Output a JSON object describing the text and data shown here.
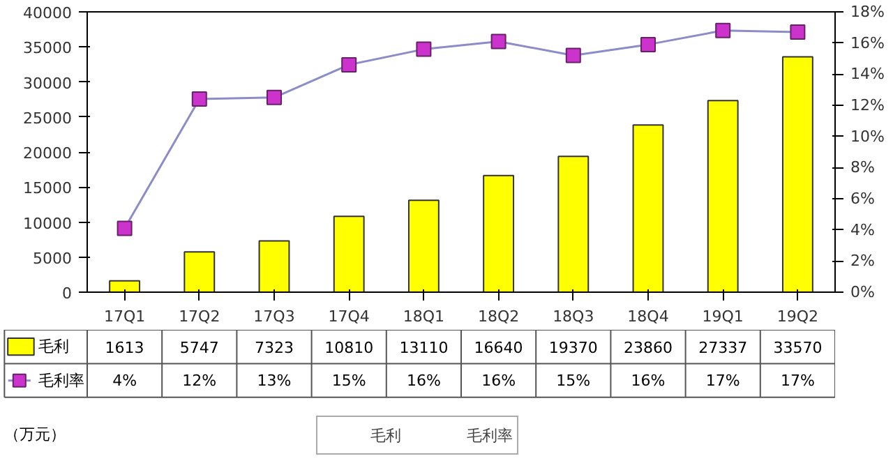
{
  "chart_data": {
    "type": "bar",
    "categories": [
      "17Q1",
      "17Q2",
      "17Q3",
      "17Q4",
      "18Q1",
      "18Q2",
      "18Q3",
      "18Q4",
      "19Q1",
      "19Q2"
    ],
    "series": [
      {
        "name": "毛利",
        "color": "#ffff00",
        "values": [
          1613,
          5747,
          7323,
          10810,
          13110,
          16640,
          19370,
          23860,
          27337,
          33570
        ],
        "value_labels": [
          "1613",
          "5747",
          "7323",
          "10810",
          "13110",
          "16640",
          "19370",
          "23860",
          "27337",
          "33570"
        ]
      },
      {
        "name": "毛利率",
        "type": "line",
        "axis": "y2",
        "color": "#8c8cc8",
        "marker": "square",
        "values": [
          4.1,
          12.4,
          12.5,
          14.6,
          15.6,
          16.1,
          15.2,
          15.9,
          16.8,
          16.7
        ],
        "value_labels": [
          "4%",
          "12%",
          "13%",
          "15%",
          "16%",
          "16%",
          "15%",
          "16%",
          "17%",
          "17%"
        ]
      }
    ],
    "ylim": [
      0,
      40000
    ],
    "yticks": [
      0,
      5000,
      10000,
      15000,
      20000,
      25000,
      30000,
      35000,
      40000
    ],
    "y2lim": [
      0,
      18
    ],
    "y2ticks": [
      {
        "value": 0,
        "label": "0%"
      },
      {
        "value": 2,
        "label": "2%"
      },
      {
        "value": 4,
        "label": "4%"
      },
      {
        "value": 6,
        "label": "6%"
      },
      {
        "value": 8,
        "label": "8%"
      },
      {
        "value": 10,
        "label": "10%"
      },
      {
        "value": 12,
        "label": "12%"
      },
      {
        "value": 14,
        "label": "14%"
      },
      {
        "value": 16,
        "label": "16%"
      },
      {
        "value": 18,
        "label": "18%"
      }
    ],
    "annotations": [
      "（万元）"
    ],
    "legend": "bottom",
    "grid": false
  }
}
